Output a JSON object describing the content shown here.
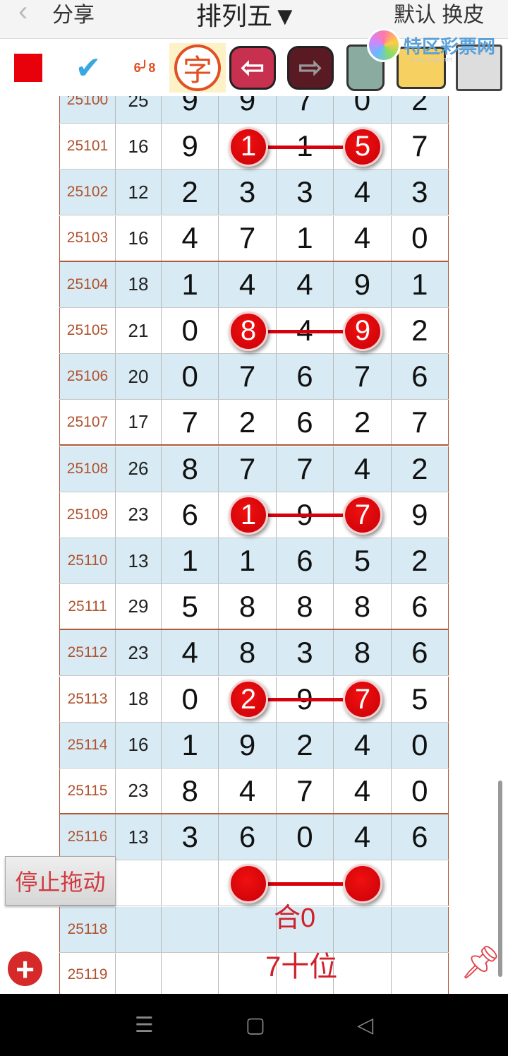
{
  "header": {
    "back_icon": "chevron-left-icon",
    "share": "分享",
    "title": "排列五▼",
    "skin": "默认 换皮"
  },
  "logo": {
    "text": "特区彩票网",
    "url": "www.tcqp.net"
  },
  "toolbar": {
    "items": [
      "red-square",
      "check-tool",
      "link-6-8",
      "字",
      "arrow-left",
      "arrow-right",
      "trash",
      "photo-folder",
      "save-disk"
    ],
    "zi_label": "字",
    "link_a": "6",
    "link_b": "8"
  },
  "rows": [
    {
      "issue": "25100",
      "sum": "25",
      "d": [
        "9",
        "9",
        "7",
        "0",
        "2"
      ]
    },
    {
      "issue": "25101",
      "sum": "16",
      "d": [
        "9",
        "1",
        "1",
        "5",
        "7"
      ]
    },
    {
      "issue": "25102",
      "sum": "12",
      "d": [
        "2",
        "3",
        "3",
        "4",
        "3"
      ]
    },
    {
      "issue": "25103",
      "sum": "16",
      "d": [
        "4",
        "7",
        "1",
        "4",
        "0"
      ]
    },
    {
      "issue": "25104",
      "sum": "18",
      "d": [
        "1",
        "4",
        "4",
        "9",
        "1"
      ]
    },
    {
      "issue": "25105",
      "sum": "21",
      "d": [
        "0",
        "8",
        "4",
        "9",
        "2"
      ]
    },
    {
      "issue": "25106",
      "sum": "20",
      "d": [
        "0",
        "7",
        "6",
        "7",
        "6"
      ]
    },
    {
      "issue": "25107",
      "sum": "17",
      "d": [
        "7",
        "2",
        "6",
        "2",
        "7"
      ]
    },
    {
      "issue": "25108",
      "sum": "26",
      "d": [
        "8",
        "7",
        "7",
        "4",
        "2"
      ]
    },
    {
      "issue": "25109",
      "sum": "23",
      "d": [
        "6",
        "1",
        "9",
        "7",
        "9"
      ]
    },
    {
      "issue": "25110",
      "sum": "13",
      "d": [
        "1",
        "1",
        "6",
        "5",
        "2"
      ]
    },
    {
      "issue": "25111",
      "sum": "29",
      "d": [
        "5",
        "8",
        "8",
        "8",
        "6"
      ]
    },
    {
      "issue": "25112",
      "sum": "23",
      "d": [
        "4",
        "8",
        "3",
        "8",
        "6"
      ]
    },
    {
      "issue": "25113",
      "sum": "18",
      "d": [
        "0",
        "2",
        "9",
        "7",
        "5"
      ]
    },
    {
      "issue": "25114",
      "sum": "16",
      "d": [
        "1",
        "9",
        "2",
        "4",
        "0"
      ]
    },
    {
      "issue": "25115",
      "sum": "23",
      "d": [
        "8",
        "4",
        "7",
        "4",
        "0"
      ]
    },
    {
      "issue": "25116",
      "sum": "13",
      "d": [
        "3",
        "6",
        "0",
        "4",
        "6"
      ]
    },
    {
      "issue": "",
      "sum": "",
      "d": [
        "",
        "",
        "",
        "",
        ""
      ]
    },
    {
      "issue": "25118",
      "sum": "",
      "d": [
        "",
        "",
        "",
        "",
        ""
      ]
    },
    {
      "issue": "25119",
      "sum": "",
      "d": [
        "",
        "",
        "",
        "",
        ""
      ]
    }
  ],
  "highlight_rows": [
    1,
    5,
    9,
    13,
    17
  ],
  "annotation": {
    "sum": "合0",
    "position": "7十位"
  },
  "stop_drag_button": "停止拖动",
  "colors": {
    "accent": "#d8000b",
    "issue_text": "#b0522e",
    "row_blue": "#d8ebf4"
  }
}
